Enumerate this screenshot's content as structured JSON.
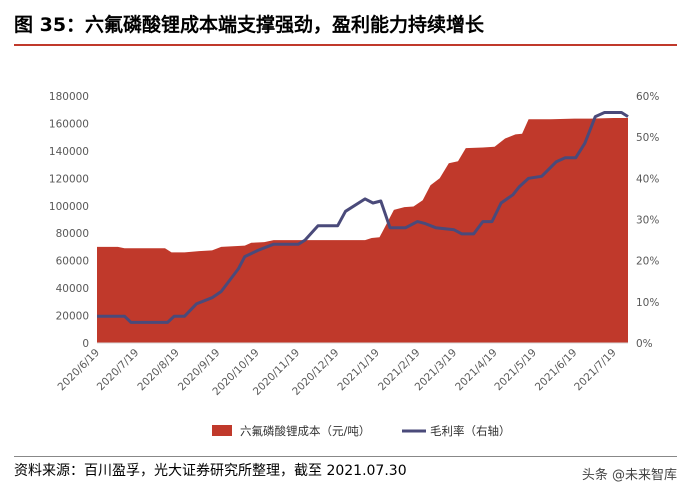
{
  "figure": {
    "title": "图 35：六氟磷酸锂成本端支撑强劲，盈利能力持续增长",
    "source": "资料来源：百川盈孚，光大证券研究所整理，截至 2021.07.30",
    "watermark": "头条 @未来智库"
  },
  "colors": {
    "area": "#c0392b",
    "line": "#4a4a7a",
    "accent_rule": "#c0392b"
  },
  "chart_data": {
    "type": "area",
    "x_ticks": [
      "2020/6/19",
      "2020/7/19",
      "2020/8/19",
      "2020/9/19",
      "2020/10/19",
      "2020/11/19",
      "2020/12/19",
      "2021/1/19",
      "2021/2/19",
      "2021/3/19",
      "2021/4/19",
      "2021/5/19",
      "2021/6/19",
      "2021/7/19"
    ],
    "x_range": [
      "2020/6/19",
      "2021/7/30"
    ],
    "y_left": {
      "range": [
        0,
        180000
      ],
      "ticks": [
        "0",
        "20000",
        "40000",
        "60000",
        "80000",
        "100000",
        "120000",
        "140000",
        "160000",
        "180000"
      ]
    },
    "y_right": {
      "range": [
        0,
        0.6
      ],
      "ticks": [
        "0%",
        "10%",
        "20%",
        "30%",
        "40%",
        "50%",
        "60%"
      ]
    },
    "legend_position": "bottom",
    "series": [
      {
        "name": "六氟磷酸锂成本（元/吨）",
        "kind": "area",
        "axis": "left",
        "points": [
          [
            "2020/6/19",
            70000
          ],
          [
            "2020/7/5",
            70000
          ],
          [
            "2020/7/10",
            69000
          ],
          [
            "2020/8/10",
            69000
          ],
          [
            "2020/8/15",
            66000
          ],
          [
            "2020/8/25",
            66000
          ],
          [
            "2020/9/5",
            67000
          ],
          [
            "2020/9/15",
            67500
          ],
          [
            "2020/9/22",
            70000
          ],
          [
            "2020/10/10",
            71000
          ],
          [
            "2020/10/15",
            73000
          ],
          [
            "2020/10/25",
            73500
          ],
          [
            "2020/11/1",
            75000
          ],
          [
            "2021/1/10",
            75000
          ],
          [
            "2021/1/15",
            76500
          ],
          [
            "2021/1/21",
            77000
          ],
          [
            "2021/2/1",
            97000
          ],
          [
            "2021/2/9",
            99000
          ],
          [
            "2021/2/16",
            99500
          ],
          [
            "2021/2/23",
            104000
          ],
          [
            "2021/3/1",
            115000
          ],
          [
            "2021/3/8",
            120000
          ],
          [
            "2021/3/15",
            131000
          ],
          [
            "2021/3/22",
            132500
          ],
          [
            "2021/3/28",
            142000
          ],
          [
            "2021/4/10",
            142500
          ],
          [
            "2021/4/19",
            143000
          ],
          [
            "2021/4/27",
            149000
          ],
          [
            "2021/5/5",
            152000
          ],
          [
            "2021/5/10",
            152500
          ],
          [
            "2021/5/15",
            163000
          ],
          [
            "2021/6/1",
            163000
          ],
          [
            "2021/6/19",
            163500
          ],
          [
            "2021/7/1",
            163500
          ],
          [
            "2021/7/19",
            164000
          ],
          [
            "2021/7/30",
            164000
          ]
        ]
      },
      {
        "name": "毛利率（右轴）",
        "kind": "line",
        "axis": "right",
        "points": [
          [
            "2020/6/19",
            0.065
          ],
          [
            "2020/7/10",
            0.065
          ],
          [
            "2020/7/15",
            0.05
          ],
          [
            "2020/8/5",
            0.05
          ],
          [
            "2020/8/12",
            0.05
          ],
          [
            "2020/8/17",
            0.065
          ],
          [
            "2020/8/25",
            0.065
          ],
          [
            "2020/9/3",
            0.095
          ],
          [
            "2020/9/15",
            0.11
          ],
          [
            "2020/9/22",
            0.125
          ],
          [
            "2020/10/5",
            0.18
          ],
          [
            "2020/10/10",
            0.21
          ],
          [
            "2020/10/20",
            0.225
          ],
          [
            "2020/11/1",
            0.24
          ],
          [
            "2020/11/20",
            0.24
          ],
          [
            "2020/11/25",
            0.25
          ],
          [
            "2020/12/5",
            0.285
          ],
          [
            "2020/12/20",
            0.285
          ],
          [
            "2020/12/26",
            0.32
          ],
          [
            "2021/1/10",
            0.35
          ],
          [
            "2021/1/16",
            0.34
          ],
          [
            "2021/1/22",
            0.345
          ],
          [
            "2021/1/29",
            0.28
          ],
          [
            "2021/2/10",
            0.28
          ],
          [
            "2021/2/19",
            0.295
          ],
          [
            "2021/2/25",
            0.29
          ],
          [
            "2021/3/5",
            0.28
          ],
          [
            "2021/3/19",
            0.275
          ],
          [
            "2021/3/25",
            0.265
          ],
          [
            "2021/4/3",
            0.265
          ],
          [
            "2021/4/10",
            0.295
          ],
          [
            "2021/4/17",
            0.295
          ],
          [
            "2021/4/24",
            0.34
          ],
          [
            "2021/5/3",
            0.36
          ],
          [
            "2021/5/8",
            0.38
          ],
          [
            "2021/5/15",
            0.4
          ],
          [
            "2021/5/25",
            0.405
          ],
          [
            "2021/6/5",
            0.44
          ],
          [
            "2021/6/12",
            0.45
          ],
          [
            "2021/6/20",
            0.45
          ],
          [
            "2021/6/27",
            0.485
          ],
          [
            "2021/7/5",
            0.55
          ],
          [
            "2021/7/12",
            0.56
          ],
          [
            "2021/7/19",
            0.56
          ],
          [
            "2021/7/25",
            0.56
          ],
          [
            "2021/7/30",
            0.55
          ]
        ]
      }
    ]
  }
}
